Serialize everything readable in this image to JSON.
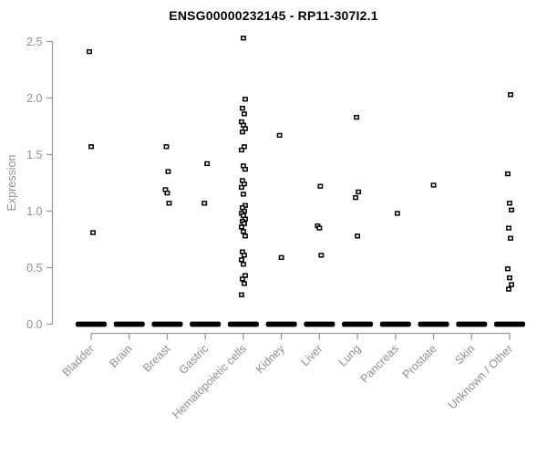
{
  "chart_data": {
    "type": "scatter",
    "title": "ENSG00000232145 - RP11-307I2.1",
    "xlabel": "",
    "ylabel": "Expression",
    "ylim": [
      0.0,
      2.5
    ],
    "yticks": [
      "0.0",
      "0.5",
      "1.0",
      "1.5",
      "2.0",
      "2.5"
    ],
    "grid": false,
    "legend": "none",
    "marker": "open-square",
    "colors": {
      "marker": "#000000",
      "zero_bar": "#000000",
      "axis_line": "#9b9b9b",
      "tick_label": "#8f8f8f",
      "axis_label": "#8f8f8f",
      "title": "#000000",
      "background": "#ffffff"
    },
    "categories": [
      "Bladder",
      "Brain",
      "Breast",
      "Gastric",
      "Hematopoietic cells",
      "Kidney",
      "Liver",
      "Lung",
      "Pancreas",
      "Prostate",
      "Skin",
      "Unknown / Other"
    ],
    "series": [
      {
        "name": "Expression",
        "points_by_category": [
          [
            2.41,
            1.57,
            0.81
          ],
          [],
          [
            1.57,
            1.35,
            1.19,
            1.16,
            1.07
          ],
          [
            1.42,
            1.07
          ],
          [
            2.53,
            1.99,
            1.91,
            1.86,
            1.79,
            1.76,
            1.73,
            1.7,
            1.57,
            1.54,
            1.4,
            1.37,
            1.27,
            1.24,
            1.21,
            1.15,
            1.05,
            1.03,
            1.0,
            0.98,
            0.96,
            0.93,
            0.91,
            0.89,
            0.86,
            0.82,
            0.78,
            0.64,
            0.61,
            0.57,
            0.53,
            0.43,
            0.4,
            0.36,
            0.26
          ],
          [
            1.67,
            0.59
          ],
          [
            1.22,
            0.87,
            0.85,
            0.61
          ],
          [
            1.83,
            1.17,
            1.12,
            0.78
          ],
          [
            0.98
          ],
          [
            1.23
          ],
          [],
          [
            2.03,
            1.33,
            1.07,
            1.01,
            0.85,
            0.76,
            0.49,
            0.41,
            0.35,
            0.31
          ]
        ]
      }
    ],
    "zero_bar_all_categories": true,
    "zero_value": 0.0
  }
}
